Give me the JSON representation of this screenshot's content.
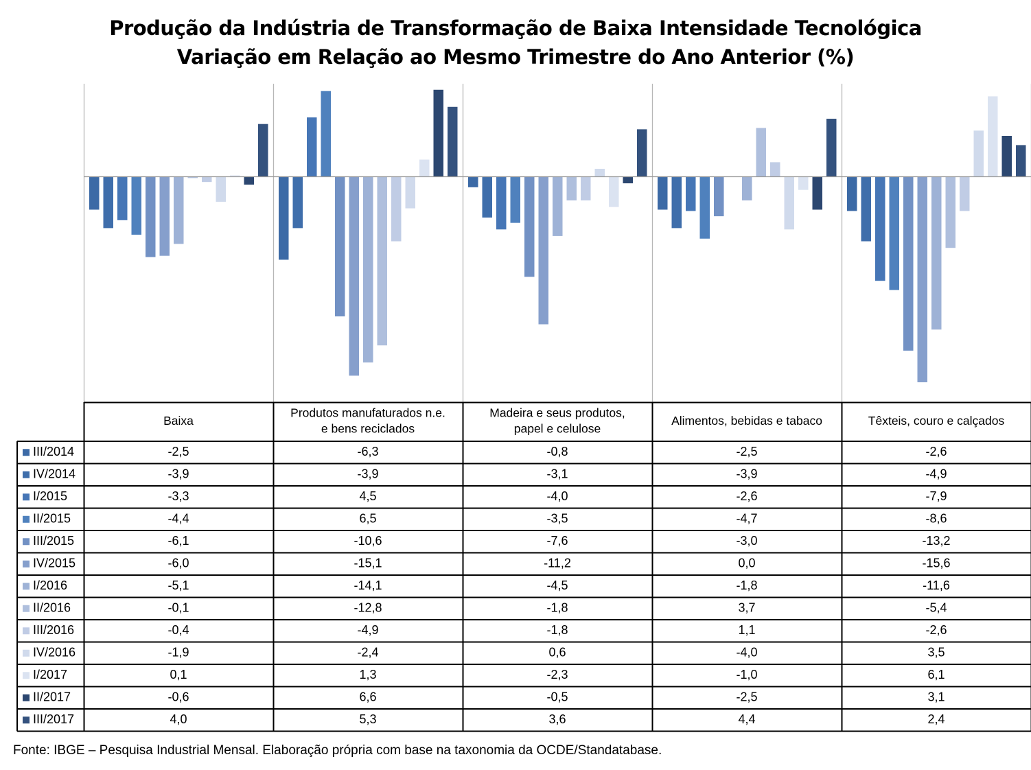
{
  "chart_data": {
    "type": "bar",
    "title": "Produção da Indústria de Transformação de Baixa Intensidade Tecnológica",
    "subtitle": "Variação em Relação ao Mesmo Trimestre do Ano Anterior (%)",
    "xlabel": "",
    "ylabel": "",
    "ylim": [
      -16,
      8
    ],
    "grid": false,
    "legend": "data-table-left",
    "categories": [
      "Baixa",
      "Produtos manufaturados n.e. e bens reciclados",
      "Madeira e seus produtos, papel e celulose",
      "Alimentos, bebidas e tabaco",
      "Têxteis, couro e calçados"
    ],
    "category_lines": [
      [
        "Baixa"
      ],
      [
        "Produtos manufaturados n.e.",
        "e bens reciclados"
      ],
      [
        "Madeira e seus produtos,",
        "papel e celulose"
      ],
      [
        "Alimentos, bebidas e tabaco"
      ],
      [
        "Têxteis, couro e calçados"
      ]
    ],
    "series": [
      {
        "name": "III/2014",
        "color": "#3c6aa6",
        "values": [
          -2.5,
          -6.3,
          -0.8,
          -2.5,
          -2.6
        ],
        "labels": [
          "-2,5",
          "-6,3",
          "-0,8",
          "-2,5",
          "-2,6"
        ]
      },
      {
        "name": "IV/2014",
        "color": "#3f6eab",
        "values": [
          -3.9,
          -3.9,
          -3.1,
          -3.9,
          -4.9
        ],
        "labels": [
          "-3,9",
          "-3,9",
          "-3,1",
          "-3,9",
          "-4,9"
        ]
      },
      {
        "name": "I/2015",
        "color": "#4676b6",
        "values": [
          -3.3,
          4.5,
          -4.0,
          -2.6,
          -7.9
        ],
        "labels": [
          "-3,3",
          "4,5",
          "-4,0",
          "-2,6",
          "-7,9"
        ]
      },
      {
        "name": "II/2015",
        "color": "#4f81bd",
        "values": [
          -4.4,
          6.5,
          -3.5,
          -4.7,
          -8.6
        ],
        "labels": [
          "-4,4",
          "6,5",
          "-3,5",
          "-4,7",
          "-8,6"
        ]
      },
      {
        "name": "III/2015",
        "color": "#7291c4",
        "values": [
          -6.1,
          -10.6,
          -7.6,
          -3.0,
          -13.2
        ],
        "labels": [
          "-6,1",
          "-10,6",
          "-7,6",
          "-3,0",
          "-13,2"
        ]
      },
      {
        "name": "IV/2015",
        "color": "#869fcc",
        "values": [
          -6.0,
          -15.1,
          -11.2,
          0.0,
          -15.6
        ],
        "labels": [
          "-6,0",
          "-15,1",
          "-11,2",
          "0,0",
          "-15,6"
        ]
      },
      {
        "name": "I/2016",
        "color": "#9eb2d6",
        "values": [
          -5.1,
          -14.1,
          -4.5,
          -1.8,
          -11.6
        ],
        "labels": [
          "-5,1",
          "-14,1",
          "-4,5",
          "-1,8",
          "-11,6"
        ]
      },
      {
        "name": "II/2016",
        "color": "#afbfdd",
        "values": [
          -0.1,
          -12.8,
          -1.8,
          3.7,
          -5.4
        ],
        "labels": [
          "-0,1",
          "-12,8",
          "-1,8",
          "3,7",
          "-5,4"
        ]
      },
      {
        "name": "III/2016",
        "color": "#c0cce5",
        "values": [
          -0.4,
          -4.9,
          -1.8,
          1.1,
          -2.6
        ],
        "labels": [
          "-0,4",
          "-4,9",
          "-1,8",
          "1,1",
          "-2,6"
        ]
      },
      {
        "name": "IV/2016",
        "color": "#d0daec",
        "values": [
          -1.9,
          -2.4,
          0.6,
          -4.0,
          3.5
        ],
        "labels": [
          "-1,9",
          "-2,4",
          "0,6",
          "-4,0",
          "3,5"
        ]
      },
      {
        "name": "I/2017",
        "color": "#dbe3f1",
        "values": [
          0.1,
          1.3,
          -2.3,
          -1.0,
          6.1
        ],
        "labels": [
          "0,1",
          "1,3",
          "-2,3",
          "-1,0",
          "6,1"
        ]
      },
      {
        "name": "II/2017",
        "color": "#2c4770",
        "values": [
          -0.6,
          6.6,
          -0.5,
          -2.5,
          3.1
        ],
        "labels": [
          "-0,6",
          "6,6",
          "-0,5",
          "-2,5",
          "3,1"
        ]
      },
      {
        "name": "III/2017",
        "color": "#34527e",
        "values": [
          4.0,
          5.3,
          3.6,
          4.4,
          2.4
        ],
        "labels": [
          "4,0",
          "5,3",
          "3,6",
          "4,4",
          "2,4"
        ]
      }
    ]
  },
  "footer": {
    "source": "Fonte: IBGE – Pesquisa Industrial Mensal. Elaboração própria com base na taxonomia da OCDE/Standatabase."
  }
}
